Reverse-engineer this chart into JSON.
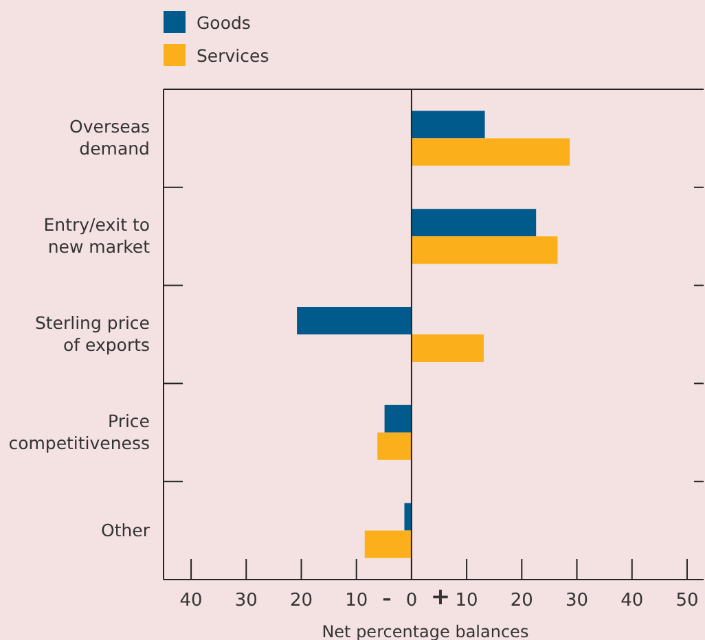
{
  "chart_data": {
    "type": "bar",
    "orientation": "horizontal",
    "categories": [
      "Overseas\ndemand",
      "Entry/exit to\nnew market",
      "Sterling price\nof exports",
      "Price\ncompetitiveness",
      "Other"
    ],
    "series": [
      {
        "name": "Goods",
        "color": "#005a8c",
        "values": [
          13.3,
          22.6,
          -20.8,
          -4.9,
          -1.3
        ]
      },
      {
        "name": "Services",
        "color": "#fbb01b",
        "values": [
          28.7,
          26.5,
          13.1,
          -6.2,
          -8.5
        ]
      }
    ],
    "xlim": [
      -45,
      53
    ],
    "xticks": [
      {
        "value": -40,
        "label": "40"
      },
      {
        "value": -30,
        "label": "30"
      },
      {
        "value": -20,
        "label": "20"
      },
      {
        "value": -10,
        "label": "10"
      },
      0,
      10,
      20,
      30,
      40,
      50
    ],
    "xlabel": "Net percentage balances",
    "annotations": [
      "–",
      "+"
    ],
    "legend": "top left"
  }
}
